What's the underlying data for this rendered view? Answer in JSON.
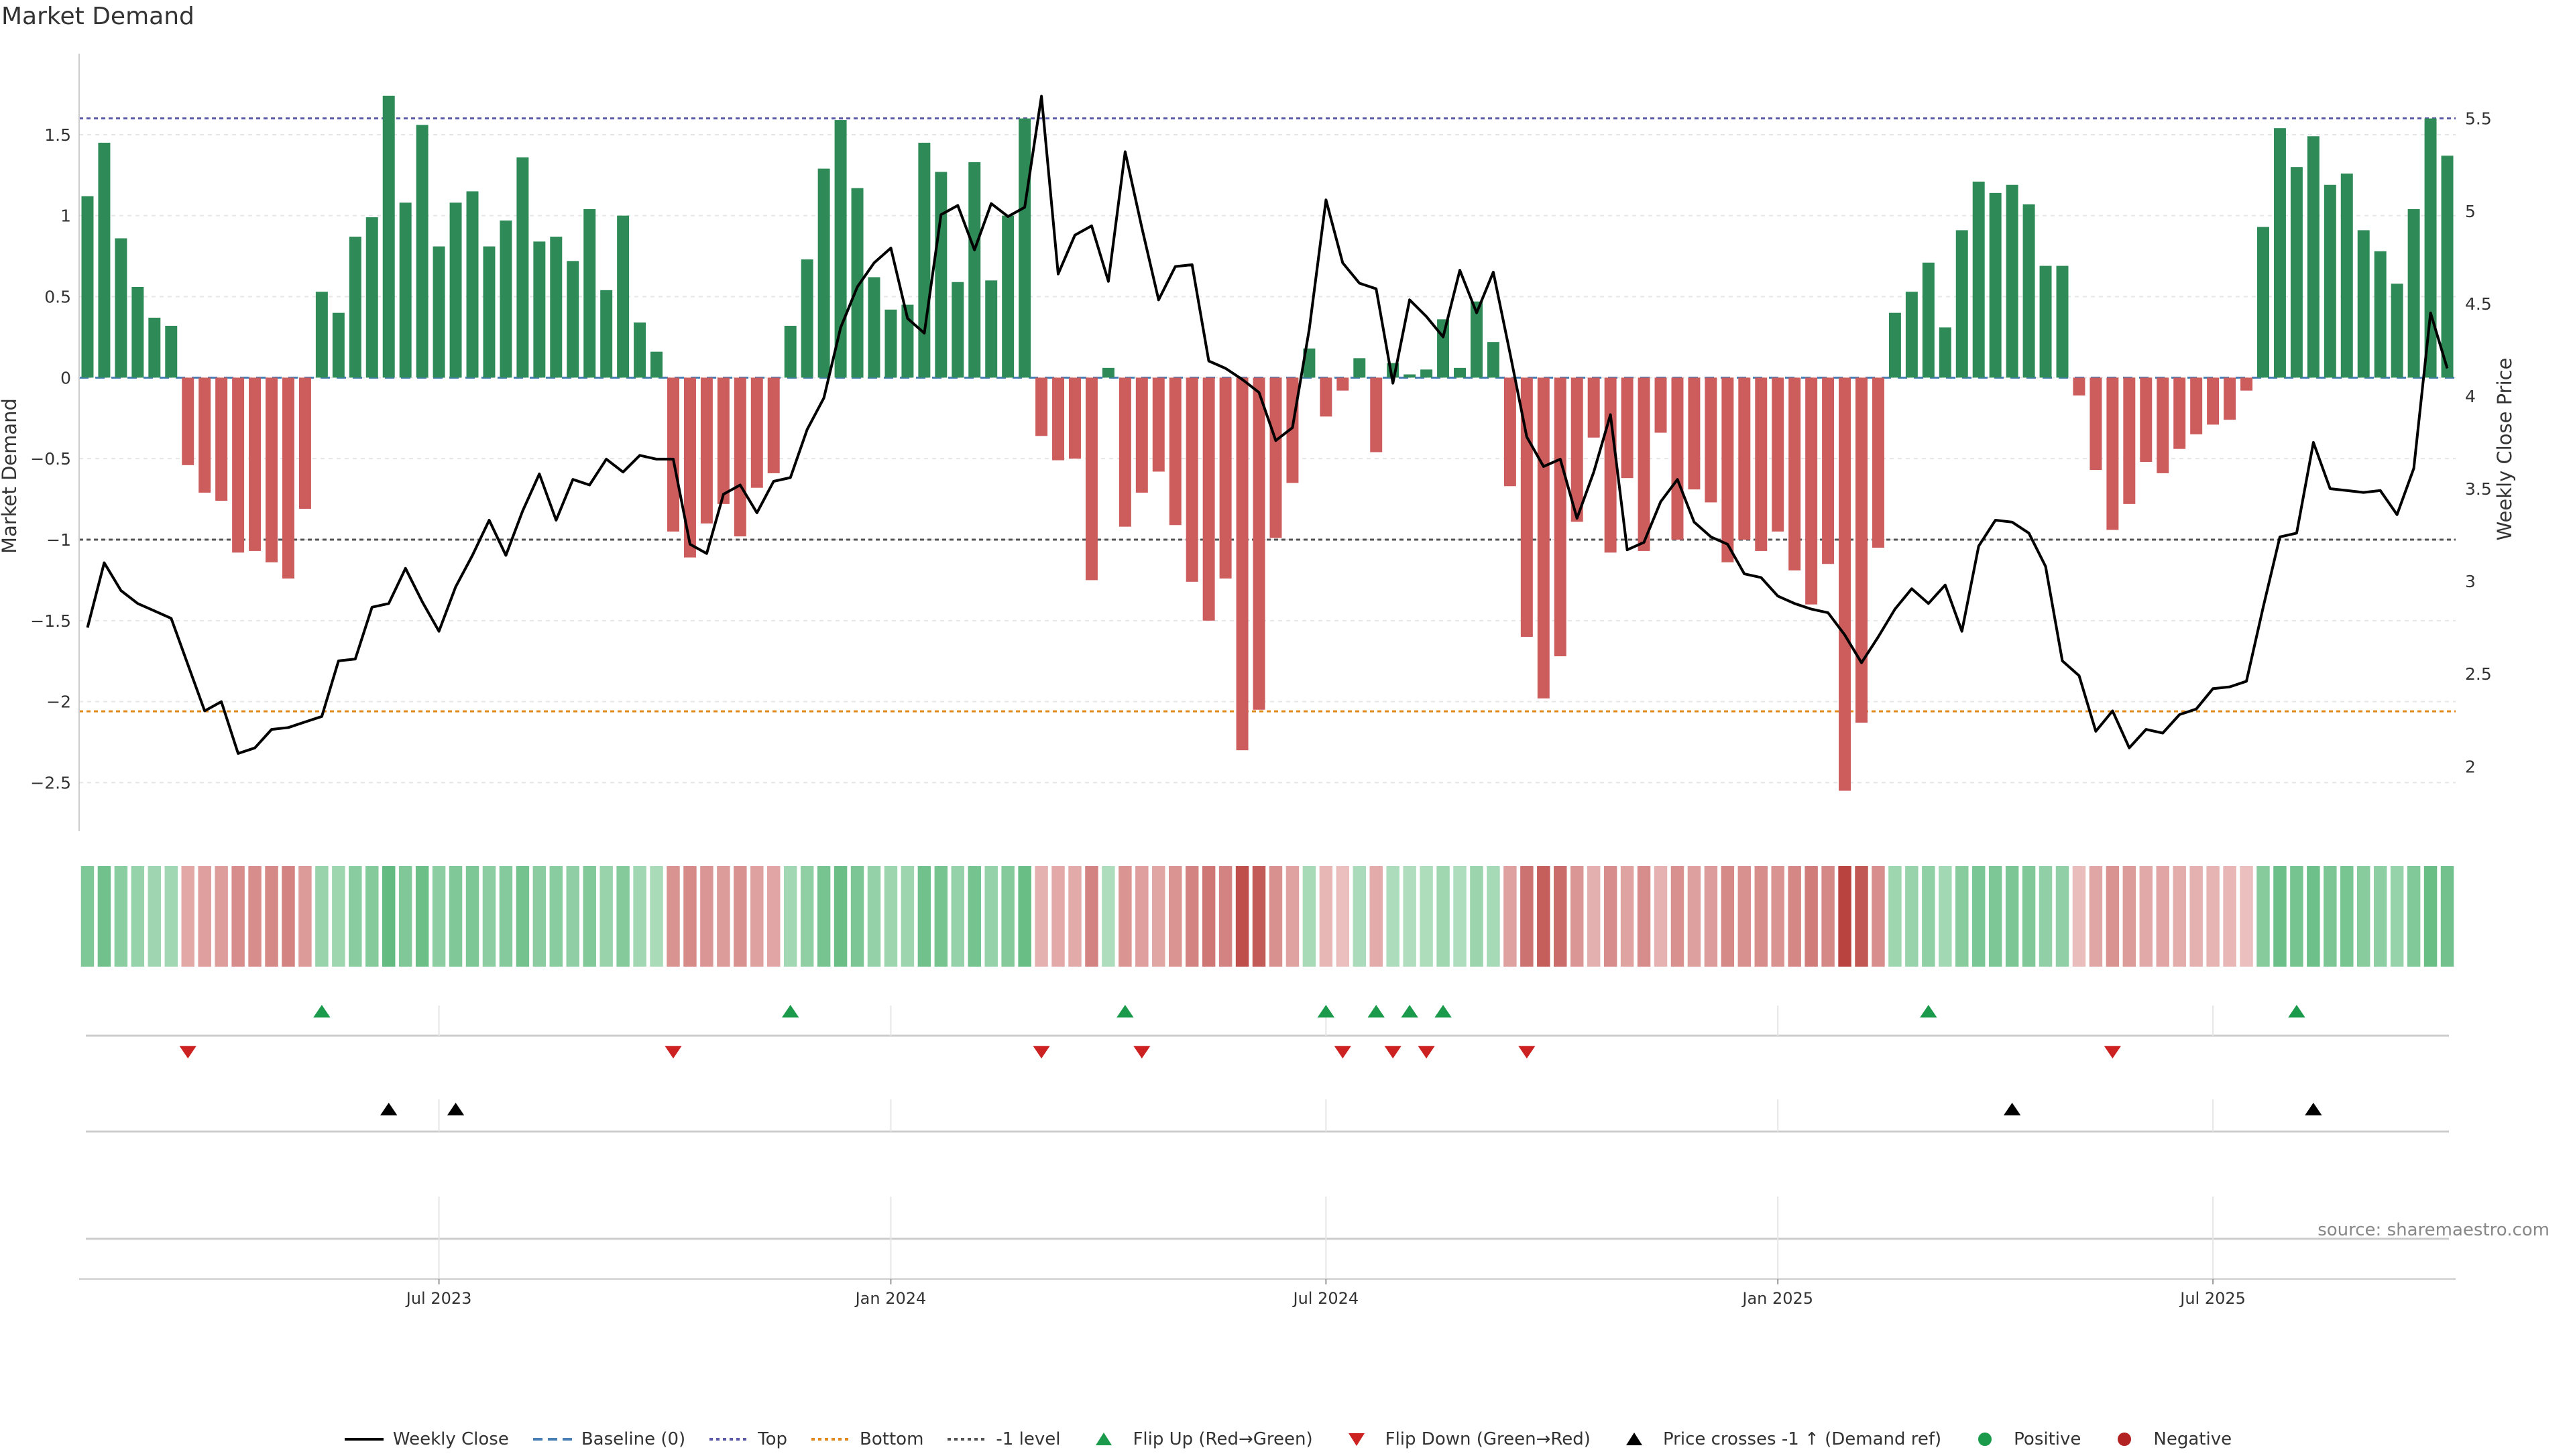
{
  "title": "Market Demand",
  "source": "source: sharemaestro.com",
  "colors": {
    "positive": "#2e8b57",
    "negative": "#cd5c5c",
    "price": "#000000",
    "top_line": "#5b5ba8",
    "bottom_line": "#e08a1e",
    "minus1_line": "#555555",
    "flip_up": "#1a9a4a",
    "flip_down": "#cc2222",
    "cross": "#000000"
  },
  "legend": [
    {
      "label": "Weekly Close",
      "icon": "solid-line-icon",
      "color": "#000000"
    },
    {
      "label": "Baseline (0)",
      "icon": "dashed-line-icon",
      "color": "#4a7fb5"
    },
    {
      "label": "Top",
      "icon": "dotted-line-icon",
      "color": "#5b5ba8"
    },
    {
      "label": "Bottom",
      "icon": "dotted-line-icon",
      "color": "#e08a1e"
    },
    {
      "label": "-1 level",
      "icon": "dotted-line-icon",
      "color": "#555555"
    },
    {
      "label": "Flip Up (Red→Green)",
      "icon": "triangle-up-icon",
      "color": "#1a9a4a"
    },
    {
      "label": "Flip Down (Green→Red)",
      "icon": "triangle-down-icon",
      "color": "#cc2222"
    },
    {
      "label": "Price crosses -1 ↑ (Demand ref)",
      "icon": "triangle-up-icon",
      "color": "#000000"
    },
    {
      "label": "Positive",
      "icon": "circle-icon",
      "color": "#1a9a4a"
    },
    {
      "label": "Negative",
      "icon": "circle-icon",
      "color": "#b22222"
    }
  ],
  "chart_data": {
    "type": "bar",
    "title": "Market Demand",
    "ylabel": "Market Demand",
    "y2label": "Weekly Close Price",
    "ylim": [
      -2.8,
      2.0
    ],
    "y2lim": [
      1.65,
      5.85
    ],
    "yticks": [
      -2.5,
      -2,
      -1.5,
      -1,
      -0.5,
      0,
      0.5,
      1,
      1.5
    ],
    "ytick_labels": [
      "−2.5",
      "−2",
      "−1.5",
      "−1",
      "−0.5",
      "0",
      "0.5",
      "1",
      "1.5"
    ],
    "y2ticks": [
      2,
      2.5,
      3,
      3.5,
      4,
      4.5,
      5,
      5.5
    ],
    "y2tick_labels": [
      "2",
      "2.5",
      "3",
      "3.5",
      "4",
      "4.5",
      "5",
      "5.5"
    ],
    "xticks": [
      21,
      48,
      74,
      101,
      127
    ],
    "xtick_labels": [
      "Jul 2023",
      "Jan 2024",
      "Jul 2024",
      "Jan 2025",
      "Jul 2025"
    ],
    "reference_lines": {
      "top": 1.6,
      "bottom": -2.06,
      "minus_one": -1,
      "baseline": 0
    },
    "demand": [
      1.12,
      1.45,
      0.86,
      0.56,
      0.37,
      0.32,
      -0.54,
      -0.71,
      -0.76,
      -1.08,
      -1.07,
      -1.14,
      -1.24,
      -0.81,
      0.53,
      0.4,
      0.87,
      0.99,
      1.74,
      1.08,
      1.56,
      0.81,
      1.08,
      1.15,
      0.81,
      0.97,
      1.36,
      0.84,
      0.87,
      0.72,
      1.04,
      0.54,
      1.0,
      0.34,
      0.16,
      -0.95,
      -1.11,
      -0.9,
      -0.78,
      -0.98,
      -0.68,
      -0.59,
      0.32,
      0.73,
      1.29,
      1.59,
      1.17,
      0.62,
      0.42,
      0.45,
      1.45,
      1.27,
      0.59,
      1.33,
      0.6,
      1.0,
      1.6,
      -0.36,
      -0.51,
      -0.5,
      -1.25,
      0.06,
      -0.92,
      -0.71,
      -0.58,
      -0.91,
      -1.26,
      -1.5,
      -1.24,
      -2.3,
      -2.05,
      -0.99,
      -0.65,
      0.18,
      -0.24,
      -0.08,
      0.12,
      -0.46,
      0.09,
      0.02,
      0.05,
      0.36,
      0.06,
      0.47,
      0.22,
      -0.67,
      -1.6,
      -1.98,
      -1.72,
      -0.89,
      -0.37,
      -1.08,
      -0.62,
      -1.07,
      -0.34,
      -1.0,
      -0.69,
      -0.77,
      -1.14,
      -1.0,
      -1.07,
      -0.95,
      -1.19,
      -1.4,
      -1.15,
      -2.55,
      -2.13,
      -1.05,
      0.4,
      0.53,
      0.71,
      0.31,
      0.91,
      1.21,
      1.14,
      1.19,
      1.07,
      0.69,
      0.69,
      -0.11,
      -0.57,
      -0.94,
      -0.78,
      -0.52,
      -0.59,
      -0.44,
      -0.35,
      -0.29,
      -0.26,
      -0.08,
      0.93,
      1.54,
      1.3,
      1.49,
      1.19,
      1.26,
      0.91,
      0.78,
      0.58,
      1.04,
      1.6,
      1.37
    ],
    "price": [
      2.75,
      3.1,
      2.95,
      2.88,
      2.84,
      2.8,
      2.55,
      2.3,
      2.35,
      2.07,
      2.1,
      2.2,
      2.21,
      2.24,
      2.27,
      2.57,
      2.58,
      2.86,
      2.88,
      3.07,
      2.89,
      2.73,
      2.97,
      3.14,
      3.33,
      3.14,
      3.38,
      3.58,
      3.33,
      3.55,
      3.52,
      3.66,
      3.59,
      3.68,
      3.66,
      3.66,
      3.2,
      3.15,
      3.47,
      3.52,
      3.37,
      3.54,
      3.56,
      3.82,
      3.99,
      4.37,
      4.59,
      4.72,
      4.8,
      4.42,
      4.34,
      4.98,
      5.03,
      4.79,
      5.04,
      4.97,
      5.02,
      5.62,
      4.66,
      4.87,
      4.92,
      4.62,
      5.32,
      4.91,
      4.52,
      4.7,
      4.71,
      4.19,
      4.15,
      4.09,
      4.02,
      3.76,
      3.83,
      4.36,
      5.06,
      4.72,
      4.61,
      4.58,
      4.07,
      4.52,
      4.43,
      4.32,
      4.68,
      4.45,
      4.67,
      4.23,
      3.78,
      3.62,
      3.66,
      3.34,
      3.59,
      3.9,
      3.17,
      3.21,
      3.43,
      3.55,
      3.32,
      3.24,
      3.2,
      3.04,
      3.02,
      2.92,
      2.88,
      2.85,
      2.83,
      2.71,
      2.56,
      2.7,
      2.85,
      2.96,
      2.88,
      2.98,
      2.73,
      3.19,
      3.33,
      3.32,
      3.26,
      3.08,
      2.57,
      2.49,
      2.19,
      2.3,
      2.1,
      2.2,
      2.18,
      2.28,
      2.31,
      2.42,
      2.43,
      2.46,
      2.86,
      3.24,
      3.26,
      3.75,
      3.5,
      3.49,
      3.48,
      3.49,
      3.36,
      3.61,
      4.45,
      4.15
    ],
    "flip_up": [
      14,
      42,
      62,
      74,
      77,
      79,
      81,
      110,
      132
    ],
    "flip_down": [
      6,
      35,
      57,
      63,
      75,
      78,
      80,
      86,
      121
    ],
    "price_cross": [
      18,
      22,
      115,
      133
    ]
  }
}
